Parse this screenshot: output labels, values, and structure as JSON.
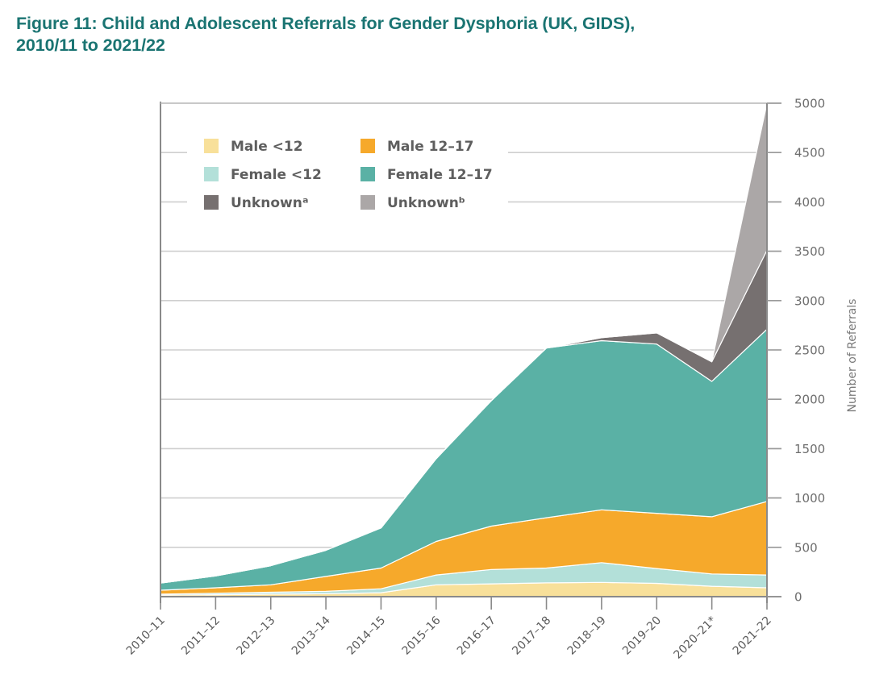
{
  "figure": {
    "title_line1": "Figure 11: Child and Adolescent Referrals for Gender Dysphoria (UK, GIDS),",
    "title_line2": "2010/11 to 2021/22"
  },
  "chart_data": {
    "type": "area",
    "stacked": true,
    "title": "Figure 11: Child and Adolescent Referrals for Gender Dysphoria (UK, GIDS), 2010/11 to 2021/22",
    "xlabel": "",
    "ylabel": "Number of Referrals",
    "ylim": [
      0,
      5000
    ],
    "yticks": [
      0,
      500,
      1000,
      1500,
      2000,
      2500,
      3000,
      3500,
      4000,
      4500,
      5000
    ],
    "y_axis_side": "right",
    "grid": true,
    "legend_position": "top-left",
    "categories": [
      "2010-11",
      "2011-12",
      "2012-13",
      "2013-14",
      "2014-15",
      "2015-16",
      "2016-17",
      "2017-18",
      "2018-19",
      "2019-20",
      "2020-21*",
      "2021-22"
    ],
    "series": [
      {
        "name": "Male <12",
        "color": "#f8e09a",
        "values": [
          15,
          20,
          25,
          30,
          40,
          120,
          130,
          140,
          145,
          135,
          105,
          90
        ]
      },
      {
        "name": "Female <12",
        "color": "#b3e0d9",
        "values": [
          10,
          15,
          20,
          25,
          40,
          100,
          145,
          150,
          200,
          150,
          125,
          130
        ]
      },
      {
        "name": "Male 12-17",
        "color": "#f6a92b",
        "values": [
          40,
          55,
          75,
          150,
          210,
          340,
          440,
          510,
          535,
          560,
          580,
          745
        ]
      },
      {
        "name": "Female 12-17",
        "color": "#5ab1a5",
        "values": [
          73,
          120,
          194,
          265,
          407,
          838,
          1271,
          1719,
          1714,
          1715,
          1371,
          1745
        ]
      },
      {
        "name": "Unknownᵃ",
        "color": "#767070",
        "values": [
          0,
          0,
          0,
          0,
          0,
          0,
          0,
          0,
          30,
          112,
          199,
          800
        ]
      },
      {
        "name": "Unknownᵇ",
        "color": "#aba7a7",
        "values": [
          0,
          0,
          0,
          0,
          0,
          0,
          0,
          0,
          0,
          0,
          0,
          1490
        ]
      }
    ],
    "totals": [
      138,
      210,
      314,
      470,
      697,
      1398,
      1986,
      2519,
      2624,
      2672,
      2380,
      5000
    ]
  },
  "legend": {
    "items": [
      {
        "label": "Male <12",
        "color": "#f8e09a"
      },
      {
        "label": "Male 12–17",
        "color": "#f6a92b"
      },
      {
        "label": "Female <12",
        "color": "#b3e0d9"
      },
      {
        "label": "Female 12–17",
        "color": "#5ab1a5"
      },
      {
        "label": "Unknownᵃ",
        "color": "#767070"
      },
      {
        "label": "Unknownᵇ",
        "color": "#aba7a7"
      }
    ]
  },
  "x_tick_labels": [
    "2010–11",
    "2011–12",
    "2012–13",
    "2013–14",
    "2014–15",
    "2015–16",
    "2016–17",
    "2017–18",
    "2018–19",
    "2019–20",
    "2020–21*",
    "2021–22"
  ],
  "y_tick_labels": [
    "0",
    "500",
    "1000",
    "1500",
    "2000",
    "2500",
    "3000",
    "3500",
    "4000",
    "4500",
    "5000"
  ],
  "y_axis_title": "Number of Referrals"
}
